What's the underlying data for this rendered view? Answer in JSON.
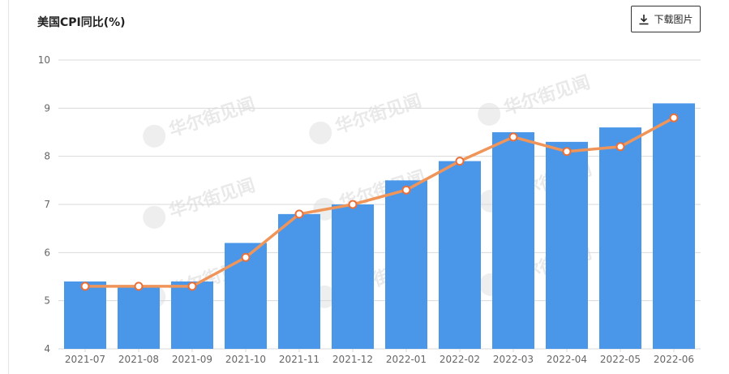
{
  "header": {
    "title": "美国CPI同比(%)",
    "download_label": "下载图片",
    "download_icon": "download-icon"
  },
  "watermark_text": "华尔街见闻",
  "colors": {
    "bar": "#4a97ea",
    "line": "#f0955a",
    "grid": "#d9d9d9",
    "axis_text": "#666666"
  },
  "chart_data": {
    "type": "bar",
    "title": "美国CPI同比(%)",
    "xlabel": "",
    "ylabel": "",
    "ylim": [
      4,
      10
    ],
    "yticks": [
      4,
      5,
      6,
      7,
      8,
      9,
      10
    ],
    "grid": true,
    "categories": [
      "2021-07",
      "2021-08",
      "2021-09",
      "2021-10",
      "2021-11",
      "2021-12",
      "2022-01",
      "2022-02",
      "2022-03",
      "2022-04",
      "2022-05",
      "2022-06"
    ],
    "series": [
      {
        "type": "bar",
        "values": [
          5.4,
          5.3,
          5.4,
          6.2,
          6.8,
          7.0,
          7.5,
          7.9,
          8.5,
          8.3,
          8.6,
          9.1
        ]
      },
      {
        "type": "line",
        "values": [
          5.3,
          5.3,
          5.3,
          5.9,
          6.8,
          7.0,
          7.3,
          7.9,
          8.4,
          8.1,
          8.2,
          8.8
        ]
      }
    ]
  }
}
